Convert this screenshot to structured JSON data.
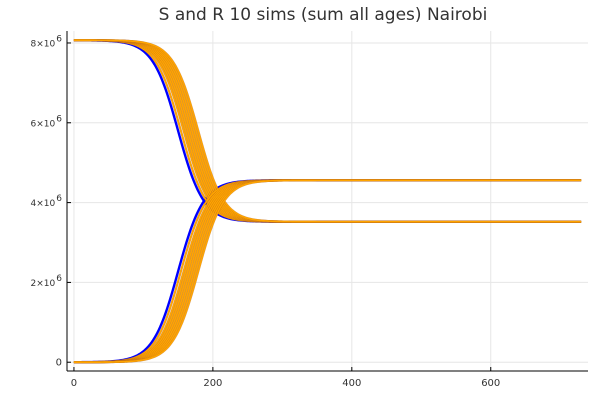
{
  "chart_data": {
    "type": "line",
    "title": "S and R 10 sims (sum all ages) Nairobi",
    "xlabel": "",
    "ylabel": "",
    "xlim": [
      -10,
      740
    ],
    "ylim": [
      -220000,
      8300000
    ],
    "x_ticks": [
      0,
      200,
      400,
      600
    ],
    "x_tick_labels": [
      "0",
      "200",
      "400",
      "600"
    ],
    "y_ticks": [
      0,
      2000000,
      4000000,
      6000000,
      8000000
    ],
    "y_tick_labels": [
      {
        "base": "0",
        "exp": ""
      },
      {
        "base": "2×10",
        "exp": "6"
      },
      {
        "base": "4×10",
        "exp": "6"
      },
      {
        "base": "6×10",
        "exp": "6"
      },
      {
        "base": "8×10",
        "exp": "6"
      }
    ],
    "grid": true,
    "legend": "none",
    "x_max": 730,
    "colors": {
      "S_sim1": "#0000ff",
      "S_other": "#ffa500",
      "R_sim1": "#0000ff",
      "R_other": "#ffa500",
      "other_edge": "#b5651d"
    },
    "series": [
      {
        "group": "S",
        "sim": 1,
        "start": 8070000,
        "end": 3520000,
        "midpoint": 150,
        "steepness": 0.055
      },
      {
        "group": "S",
        "sim": 2,
        "start": 8070000,
        "end": 3520000,
        "midpoint": 154,
        "steepness": 0.055
      },
      {
        "group": "S",
        "sim": 3,
        "start": 8070000,
        "end": 3520000,
        "midpoint": 158,
        "steepness": 0.055
      },
      {
        "group": "S",
        "sim": 4,
        "start": 8070000,
        "end": 3520000,
        "midpoint": 161,
        "steepness": 0.055
      },
      {
        "group": "S",
        "sim": 5,
        "start": 8070000,
        "end": 3520000,
        "midpoint": 164,
        "steepness": 0.055
      },
      {
        "group": "S",
        "sim": 6,
        "start": 8070000,
        "end": 3520000,
        "midpoint": 167,
        "steepness": 0.055
      },
      {
        "group": "S",
        "sim": 7,
        "start": 8070000,
        "end": 3520000,
        "midpoint": 170,
        "steepness": 0.055
      },
      {
        "group": "S",
        "sim": 8,
        "start": 8070000,
        "end": 3520000,
        "midpoint": 173,
        "steepness": 0.055
      },
      {
        "group": "S",
        "sim": 9,
        "start": 8070000,
        "end": 3520000,
        "midpoint": 176,
        "steepness": 0.055
      },
      {
        "group": "S",
        "sim": 10,
        "start": 8070000,
        "end": 3520000,
        "midpoint": 179,
        "steepness": 0.055
      },
      {
        "group": "R",
        "sim": 1,
        "start": 0,
        "end": 4560000,
        "midpoint": 150,
        "steepness": 0.055
      },
      {
        "group": "R",
        "sim": 2,
        "start": 0,
        "end": 4560000,
        "midpoint": 154,
        "steepness": 0.055
      },
      {
        "group": "R",
        "sim": 3,
        "start": 0,
        "end": 4560000,
        "midpoint": 158,
        "steepness": 0.055
      },
      {
        "group": "R",
        "sim": 4,
        "start": 0,
        "end": 4560000,
        "midpoint": 161,
        "steepness": 0.055
      },
      {
        "group": "R",
        "sim": 5,
        "start": 0,
        "end": 4560000,
        "midpoint": 164,
        "steepness": 0.055
      },
      {
        "group": "R",
        "sim": 6,
        "start": 0,
        "end": 4560000,
        "midpoint": 167,
        "steepness": 0.055
      },
      {
        "group": "R",
        "sim": 7,
        "start": 0,
        "end": 4560000,
        "midpoint": 170,
        "steepness": 0.055
      },
      {
        "group": "R",
        "sim": 8,
        "start": 0,
        "end": 4560000,
        "midpoint": 173,
        "steepness": 0.055
      },
      {
        "group": "R",
        "sim": 9,
        "start": 0,
        "end": 4560000,
        "midpoint": 176,
        "steepness": 0.055
      },
      {
        "group": "R",
        "sim": 10,
        "start": 0,
        "end": 4560000,
        "midpoint": 179,
        "steepness": 0.055
      }
    ]
  }
}
